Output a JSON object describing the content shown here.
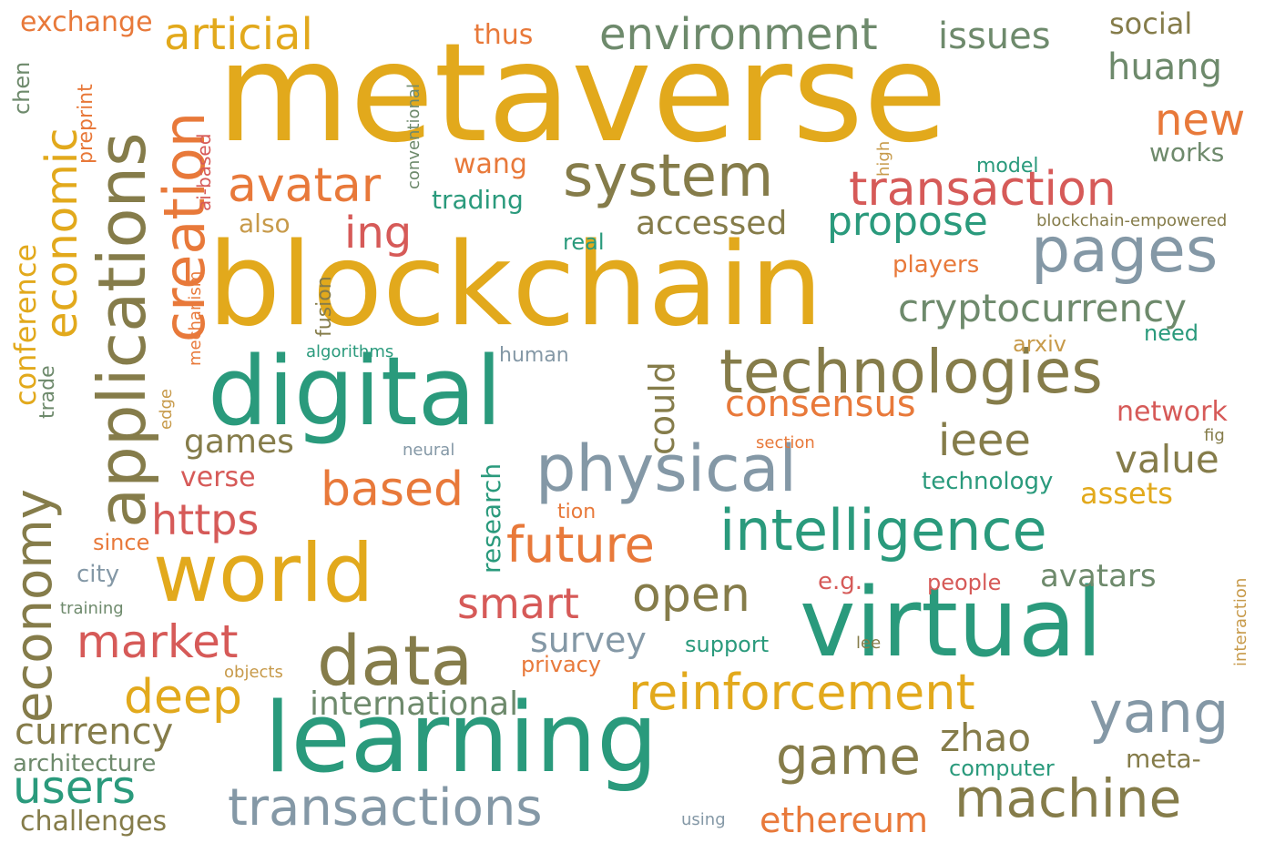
{
  "palette": {
    "gold": "#E2A91C",
    "teal": "#2A9A7C",
    "olive": "#857C4A",
    "slate": "#8498A6",
    "red": "#D65A58",
    "orange": "#E8793A",
    "sage": "#6E8A6C",
    "tan": "#C79A4A"
  },
  "words": {
    "metaverse": "metaverse",
    "blockchain": "blockchain",
    "digital": "digital",
    "learning": "learning",
    "virtual": "virtual",
    "world": "world",
    "physical": "physical",
    "intelligence": "intelligence",
    "technologies": "technologies",
    "data": "data",
    "system": "system",
    "pages": "pages",
    "applications": "applications",
    "transactions": "transactions",
    "machine": "machine",
    "reinforcement": "reinforcement",
    "game": "game",
    "yang": "yang",
    "transaction": "transaction",
    "environment": "environment",
    "creation": "creation",
    "economy": "economy",
    "economic": "economic",
    "articial": "articial",
    "avatar": "avatar",
    "ieee": "ieee",
    "cryptocurrency": "cryptocurrency",
    "propose": "propose",
    "accessed": "accessed",
    "future": "future",
    "based": "based",
    "https": "https",
    "open": "open",
    "smart": "smart",
    "market": "market",
    "deep": "deep",
    "users": "users",
    "currency": "currency",
    "international": "international",
    "value": "value",
    "huang": "huang",
    "new": "new",
    "issues": "issues",
    "could": "could",
    "consensus": "consensus",
    "zhao": "zhao",
    "ethereum": "ethereum",
    "survey": "survey",
    "avatars": "avatars",
    "ing": "ing",
    "games": "games",
    "assets": "assets",
    "conference": "conference",
    "exchange": "exchange",
    "thus": "thus",
    "social": "social",
    "verse": "verse",
    "also": "also",
    "network": "network",
    "technology": "technology",
    "research": "research",
    "challenges": "challenges",
    "architecture": "architecture",
    "meta_dash": "meta-",
    "computer": "computer",
    "wang": "wang",
    "trading": "trading",
    "players": "players",
    "arxiv": "arxiv",
    "need": "need",
    "model": "model",
    "works": "works",
    "blockchain_empowered": "blockchain-empowered",
    "real": "real",
    "privacy": "privacy",
    "support": "support",
    "e_g": "e.g.",
    "people": "people",
    "city": "city",
    "since": "since",
    "trade": "trade",
    "edge": "edge",
    "algorithms": "algorithms",
    "human": "human",
    "neural": "neural",
    "section": "section",
    "fig": "fig",
    "tion": "tion",
    "training": "training",
    "objects": "objects",
    "lee": "lee",
    "using": "using",
    "chen": "chen",
    "preprint": "preprint",
    "ai_based": "ai-based",
    "conventional": "conventional",
    "mechanism": "mechanism",
    "fusion": "fusion",
    "high": "high",
    "interaction": "interaction"
  }
}
